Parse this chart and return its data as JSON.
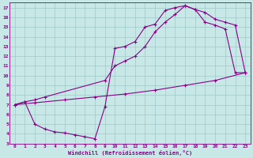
{
  "bg_color": "#c8e8e8",
  "grid_color": "#a0c8c8",
  "line_color": "#880088",
  "spine_color": "#880088",
  "xlabel": "Windchill (Refroidissement éolien,°C)",
  "xlim": [
    -0.5,
    23.5
  ],
  "ylim": [
    3,
    17.5
  ],
  "xticks": [
    0,
    1,
    2,
    3,
    4,
    5,
    6,
    7,
    8,
    9,
    10,
    11,
    12,
    13,
    14,
    15,
    16,
    17,
    18,
    19,
    20,
    21,
    22,
    23
  ],
  "yticks": [
    3,
    4,
    5,
    6,
    7,
    8,
    9,
    10,
    11,
    12,
    13,
    14,
    15,
    16,
    17
  ],
  "curve1_x": [
    0,
    1,
    2,
    3,
    4,
    5,
    6,
    7,
    8,
    9,
    10,
    11,
    12,
    13,
    14,
    15,
    16,
    17,
    18,
    19,
    20,
    21,
    22,
    23
  ],
  "curve1_y": [
    7.0,
    7.3,
    5.0,
    4.5,
    4.2,
    4.1,
    3.9,
    3.7,
    3.5,
    6.8,
    12.8,
    13.0,
    13.5,
    15.0,
    15.3,
    16.7,
    17.0,
    17.2,
    16.8,
    15.5,
    15.2,
    14.8,
    10.3,
    10.3
  ],
  "curve2_x": [
    0,
    1,
    2,
    3,
    9,
    10,
    11,
    12,
    13,
    14,
    15,
    16,
    17,
    18,
    19,
    20,
    21,
    22,
    23
  ],
  "curve2_y": [
    7.0,
    7.3,
    7.5,
    7.8,
    9.5,
    11.0,
    11.5,
    12.0,
    13.0,
    14.5,
    15.5,
    16.3,
    17.2,
    16.8,
    16.5,
    15.8,
    15.5,
    15.2,
    10.3
  ],
  "curve3_x": [
    0,
    2,
    5,
    8,
    11,
    14,
    17,
    20,
    23
  ],
  "curve3_y": [
    7.0,
    7.2,
    7.5,
    7.8,
    8.1,
    8.5,
    9.0,
    9.5,
    10.3
  ]
}
